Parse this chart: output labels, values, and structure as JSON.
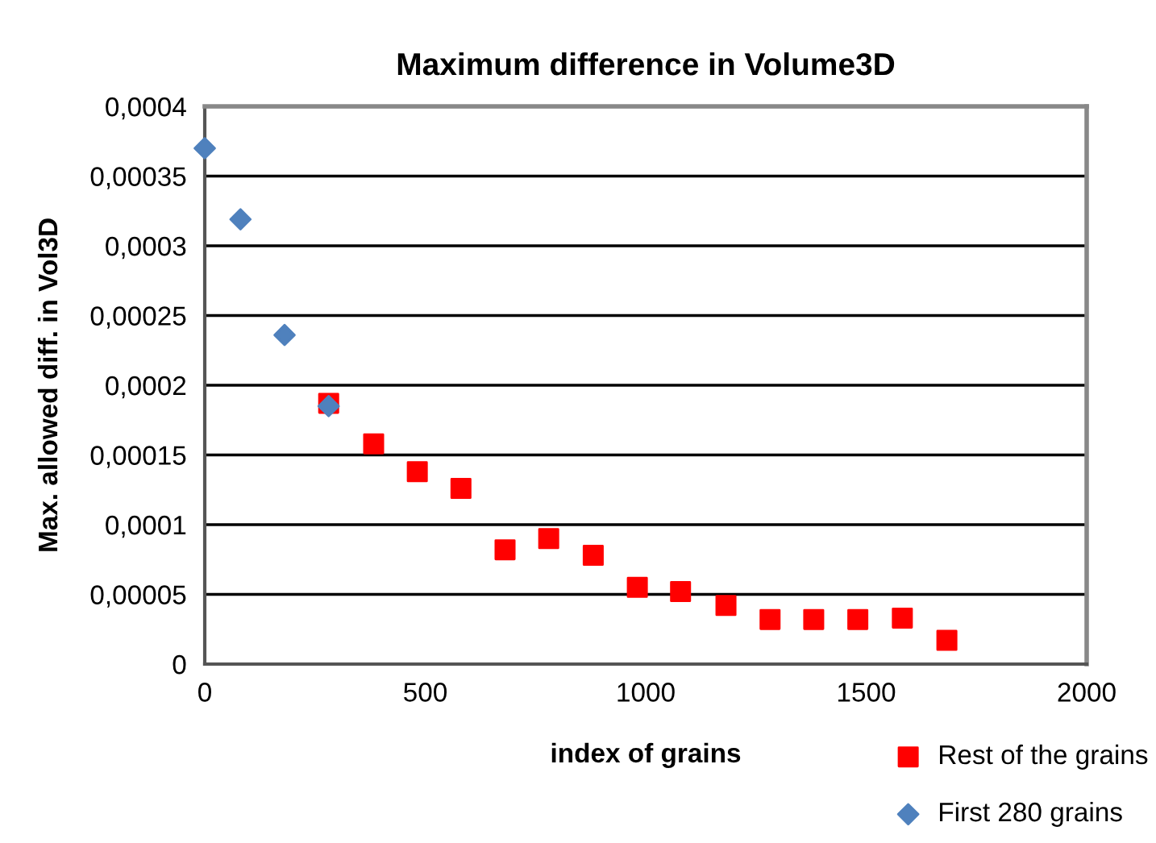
{
  "chart_data": {
    "type": "scatter",
    "title": "Maximum difference in Volume3D",
    "xlabel": "index of grains",
    "ylabel": "Max. allowed diff. in Vol3D",
    "series": [
      {
        "name": "Rest of the grains",
        "color": "#ff0000",
        "marker": "square",
        "x": [
          281,
          383,
          482,
          581,
          681,
          780,
          881,
          981,
          1079,
          1182,
          1282,
          1381,
          1481,
          1582,
          1683
        ],
        "values": [
          0.000187,
          0.000158,
          0.000138,
          0.000126,
          8.2e-05,
          9e-05,
          7.8e-05,
          5.5e-05,
          5.2e-05,
          4.2e-05,
          3.2e-05,
          3.2e-05,
          3.2e-05,
          3.3e-05,
          1.7e-05
        ]
      },
      {
        "name": "First 280 grains",
        "color": "#4f81bd",
        "marker": "diamond",
        "x": [
          0,
          81,
          181,
          281
        ],
        "values": [
          0.00037,
          0.000319,
          0.000236,
          0.000185
        ]
      }
    ],
    "xlim": [
      0,
      2000
    ],
    "xticks": [
      0,
      500,
      1000,
      1500,
      2000
    ],
    "ylim": [
      0,
      0.0004
    ],
    "yticks": [
      {
        "value": 0,
        "label": "0"
      },
      {
        "value": 5e-05,
        "label": "0,00005"
      },
      {
        "value": 0.0001,
        "label": "0,0001"
      },
      {
        "value": 0.00015,
        "label": "0,00015"
      },
      {
        "value": 0.0002,
        "label": "0,0002"
      },
      {
        "value": 0.00025,
        "label": "0,00025"
      },
      {
        "value": 0.0003,
        "label": "0,0003"
      },
      {
        "value": 0.00035,
        "label": "0,00035"
      },
      {
        "value": 0.0004,
        "label": "0,0004"
      }
    ],
    "grid": "y",
    "legend": "bottom right"
  }
}
